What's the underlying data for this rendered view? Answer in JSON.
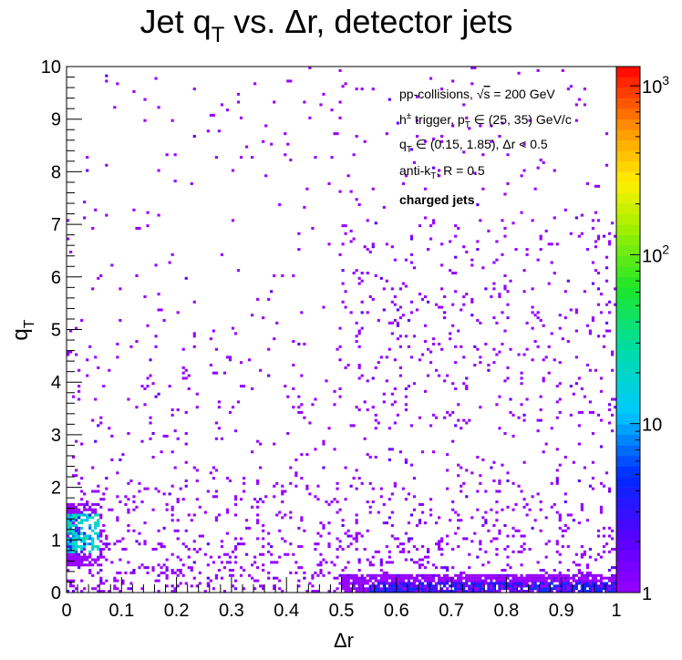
{
  "chart_data": {
    "type": "heatmap",
    "title": "Jet qₜ vs. Δr, detector jets",
    "title_parts": {
      "pre": "Jet q",
      "sub": "T",
      "post": " vs. Δr, detector jets"
    },
    "xlabel": "Δr",
    "ylabel": "q",
    "ylabel_sub": "T",
    "xlim": [
      0,
      1
    ],
    "ylim": [
      0,
      10
    ],
    "x_ticks": [
      "0",
      "0.1",
      "0.2",
      "0.3",
      "0.4",
      "0.5",
      "0.6",
      "0.7",
      "0.8",
      "0.9",
      "1"
    ],
    "y_ticks": [
      "0",
      "1",
      "2",
      "3",
      "4",
      "5",
      "6",
      "7",
      "8",
      "9",
      "10"
    ],
    "x_bins": 200,
    "y_bins": 200,
    "z_scale": "log",
    "zlim": [
      1,
      1300
    ],
    "z_ticks": [
      {
        "value": 1,
        "label": "1"
      },
      {
        "value": 10,
        "label": "10"
      },
      {
        "value": 100,
        "label": "10",
        "exp": "2"
      },
      {
        "value": 1000,
        "label": "10",
        "exp": "3"
      }
    ],
    "palette": "rainbow",
    "legend_placement": "top-right",
    "annotations": [
      {
        "text": "pp-collisions, √s = 200 GeV"
      },
      {
        "text": "h± trigger, p̂ₜ ∈ (25, 35) GeV/c"
      },
      {
        "text": "qₜ ∈ (0.15, 1.85), Δr < 0.5"
      },
      {
        "text": "anti-kₜ, R = 0.5"
      },
      {
        "text": "charged jets",
        "bold": true
      }
    ],
    "annotation_parts": [
      {
        "pre": "pp-collisions, ",
        "sqrt": "s",
        "post": " = 200 GeV"
      },
      {
        "pre": "h",
        "sup": "±",
        "mid": " trigger, ",
        "hat": "p",
        "sub": "T",
        "post": " ∈ (25, 35) GeV/c"
      },
      {
        "pre": "q",
        "sub": "T",
        "post": " ∈ (0.15, 1.85), Δr < 0.5"
      },
      {
        "pre": "anti-k",
        "sub": "T",
        "post": ", R = 0.5"
      },
      {
        "pre": "charged jets",
        "bold": true
      }
    ],
    "density_regions": [
      {
        "description": "low-Δr hot spot",
        "x_range": [
          0.0,
          0.06
        ],
        "y_range": [
          0.7,
          1.6
        ],
        "peak_count": 30
      },
      {
        "description": "band along Δr < 0.5",
        "x_range": [
          0.0,
          0.5
        ],
        "y_range": [
          0.0,
          2.0
        ],
        "peak_count": 3
      },
      {
        "description": "high-Δr low-qₜ band",
        "x_range": [
          0.5,
          1.0
        ],
        "y_range": [
          0.0,
          0.3
        ],
        "peak_count": 5
      },
      {
        "description": "sparse background",
        "x_range": [
          0.0,
          1.0
        ],
        "y_range": [
          0.0,
          10.0
        ],
        "peak_count": 1
      }
    ]
  }
}
